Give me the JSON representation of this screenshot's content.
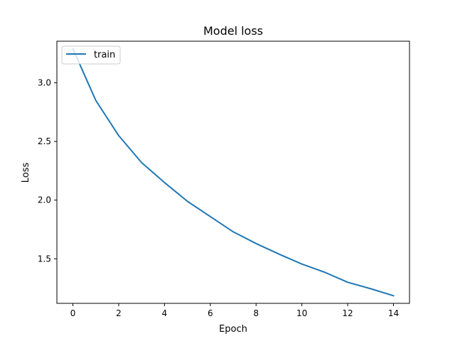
{
  "chart_data": {
    "type": "line",
    "title": "Model loss",
    "xlabel": "Epoch",
    "ylabel": "Loss",
    "x": [
      0,
      1,
      2,
      3,
      4,
      5,
      6,
      7,
      8,
      9,
      10,
      11,
      12,
      13,
      14
    ],
    "series": [
      {
        "name": "train",
        "color": "#1f77b4",
        "values": [
          3.29,
          2.85,
          2.55,
          2.32,
          2.15,
          1.99,
          1.86,
          1.73,
          1.63,
          1.54,
          1.455,
          1.385,
          1.3,
          1.245,
          1.185
        ]
      }
    ],
    "xlim": [
      -0.7,
      14.7
    ],
    "ylim": [
      1.12,
      3.355
    ],
    "xticks": [
      "0",
      "2",
      "4",
      "6",
      "8",
      "10",
      "12",
      "14"
    ],
    "xtick_values": [
      0,
      2,
      4,
      6,
      8,
      10,
      12,
      14
    ],
    "yticks": [
      "1.5",
      "2.0",
      "2.5",
      "3.0"
    ],
    "ytick_values": [
      1.5,
      2.0,
      2.5,
      3.0
    ],
    "grid": false,
    "legend_position": "upper-left"
  }
}
